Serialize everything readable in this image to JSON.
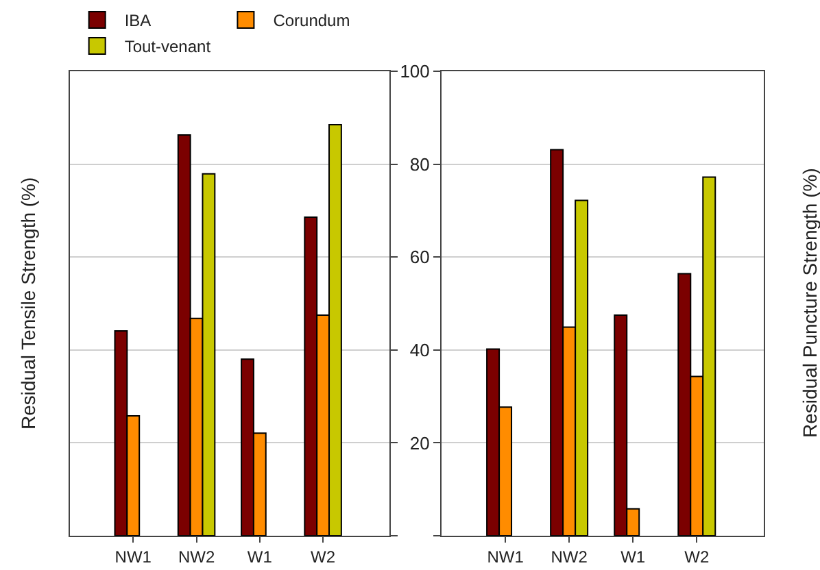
{
  "chart_data": [
    {
      "type": "bar",
      "ylabel": "Residual Tensile Strength (%)",
      "categories": [
        "NW1",
        "NW2",
        "W1",
        "W2"
      ],
      "series": [
        {
          "name": "IBA",
          "color": "#7b0000",
          "values": [
            44.1,
            86.3,
            38.0,
            68.6
          ]
        },
        {
          "name": "Corundum",
          "color": "#ff8c00",
          "values": [
            25.8,
            46.8,
            22.1,
            47.5
          ]
        },
        {
          "name": "Tout-venant",
          "color": "#c8c800",
          "values": [
            null,
            77.9,
            null,
            88.5
          ]
        }
      ],
      "ylim": [
        0,
        100
      ],
      "yticks": [
        {
          "value": 0,
          "label": null
        },
        20,
        40,
        60,
        80,
        100
      ],
      "grid": "y",
      "legend": "top",
      "tick_labels": "x"
    },
    {
      "type": "bar",
      "ylabel": "Residual Puncture Strength (%)",
      "categories": [
        "NW1",
        "NW2",
        "W1",
        "W2"
      ],
      "series": [
        {
          "color": "#7b0000",
          "values": [
            40.2,
            83.1,
            47.5,
            56.4
          ]
        },
        {
          "color": "#ff8c00",
          "values": [
            27.7,
            44.9,
            5.8,
            34.3
          ]
        },
        {
          "color": "#c8c800",
          "values": [
            null,
            72.2,
            null,
            77.2
          ]
        }
      ],
      "ylim": [
        0,
        100
      ],
      "yticks": [
        {
          "value": 0,
          "label": null
        },
        20,
        40,
        60,
        80,
        100
      ],
      "grid": "y"
    }
  ]
}
